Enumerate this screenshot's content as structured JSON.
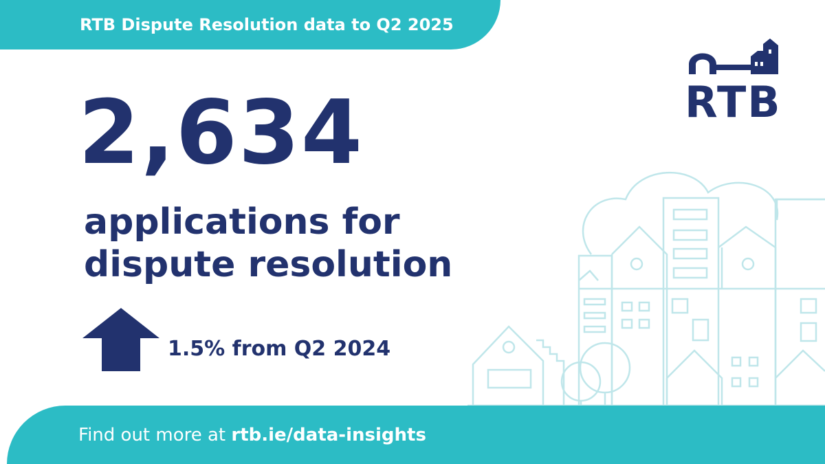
{
  "header": {
    "title": "RTB Dispute Resolution data to Q2 2025"
  },
  "stat": {
    "value": "2,634",
    "description": [
      "applications for",
      "dispute resolution"
    ]
  },
  "change": {
    "text": "1.5% from Q2 2024"
  },
  "footer": {
    "prefix": "Find out more at",
    "link": "rtb.ie/data-insights"
  },
  "logo": {
    "text": "RTB"
  }
}
